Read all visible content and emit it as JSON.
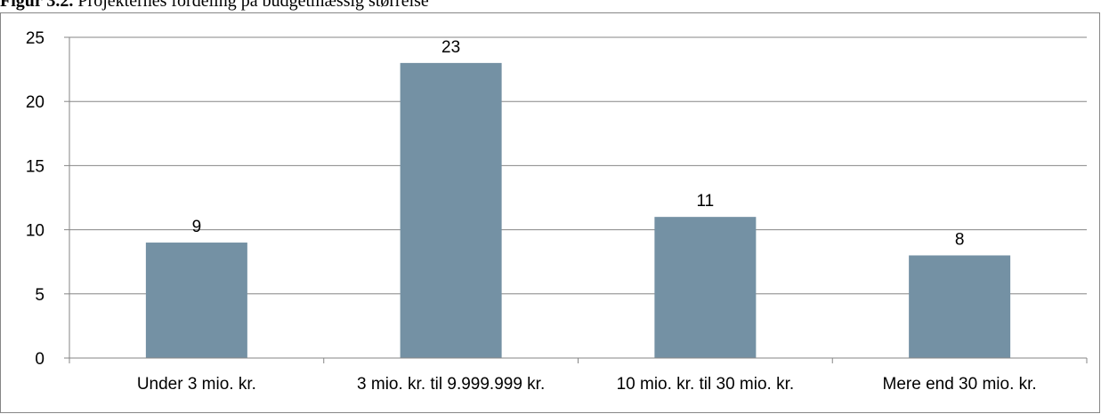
{
  "caption": {
    "label": "Figur 3.2.",
    "text": " Projekternes fordeling på budgetmæssig størrelse"
  },
  "colors": {
    "bar": "#7491a4",
    "gridline": "#868686",
    "axis": "#868686",
    "text": "#000000"
  },
  "chart_data": {
    "type": "bar",
    "title": "",
    "xlabel": "",
    "ylabel": "",
    "categories": [
      "Under 3 mio. kr.",
      "3 mio. kr. til 9.999.999 kr.",
      "10 mio. kr. til 30 mio. kr.",
      "Mere end 30 mio. kr."
    ],
    "values": [
      9,
      23,
      11,
      8
    ],
    "data_labels": [
      "9",
      "23",
      "11",
      "8"
    ],
    "ylim": [
      0,
      25
    ],
    "yticks": [
      0,
      5,
      10,
      15,
      20,
      25
    ],
    "ytick_labels": [
      "0",
      "5",
      "10",
      "15",
      "20",
      "25"
    ],
    "grid": true,
    "legend": "none"
  }
}
